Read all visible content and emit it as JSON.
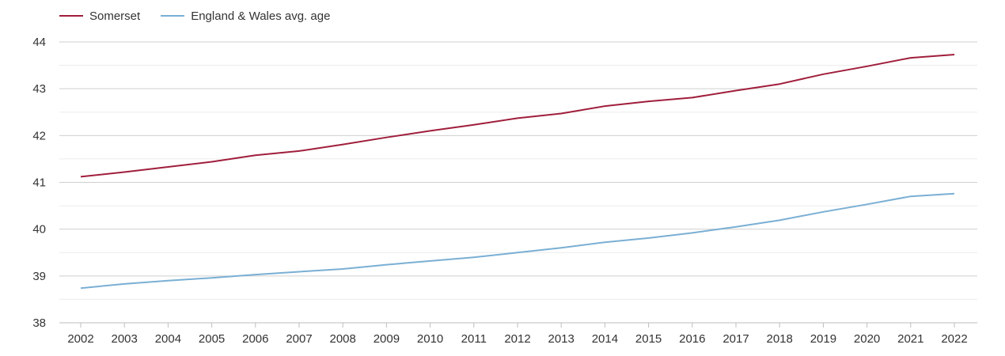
{
  "chart_data": {
    "type": "line",
    "title": "",
    "xlabel": "",
    "ylabel": "",
    "x": [
      2002,
      2003,
      2004,
      2005,
      2006,
      2007,
      2008,
      2009,
      2010,
      2011,
      2012,
      2013,
      2014,
      2015,
      2016,
      2017,
      2018,
      2019,
      2020,
      2021,
      2022
    ],
    "ylim": [
      38,
      44
    ],
    "yticks": [
      38,
      39,
      40,
      41,
      42,
      43,
      44
    ],
    "grid": true,
    "legend_position": "top-left",
    "series": [
      {
        "name": "Somerset",
        "color": "#a01e3c",
        "values": [
          41.12,
          41.22,
          41.33,
          41.44,
          41.58,
          41.67,
          41.81,
          41.96,
          42.1,
          42.23,
          42.37,
          42.47,
          42.63,
          42.73,
          42.81,
          42.96,
          43.1,
          43.31,
          43.48,
          43.66,
          43.73
        ]
      },
      {
        "name": "England & Wales avg. age",
        "color": "#7aafd4",
        "values": [
          38.74,
          38.83,
          38.9,
          38.96,
          39.03,
          39.09,
          39.15,
          39.24,
          39.32,
          39.4,
          39.5,
          39.6,
          39.72,
          39.81,
          39.92,
          40.05,
          40.19,
          40.37,
          40.53,
          40.7,
          40.76
        ]
      }
    ]
  }
}
